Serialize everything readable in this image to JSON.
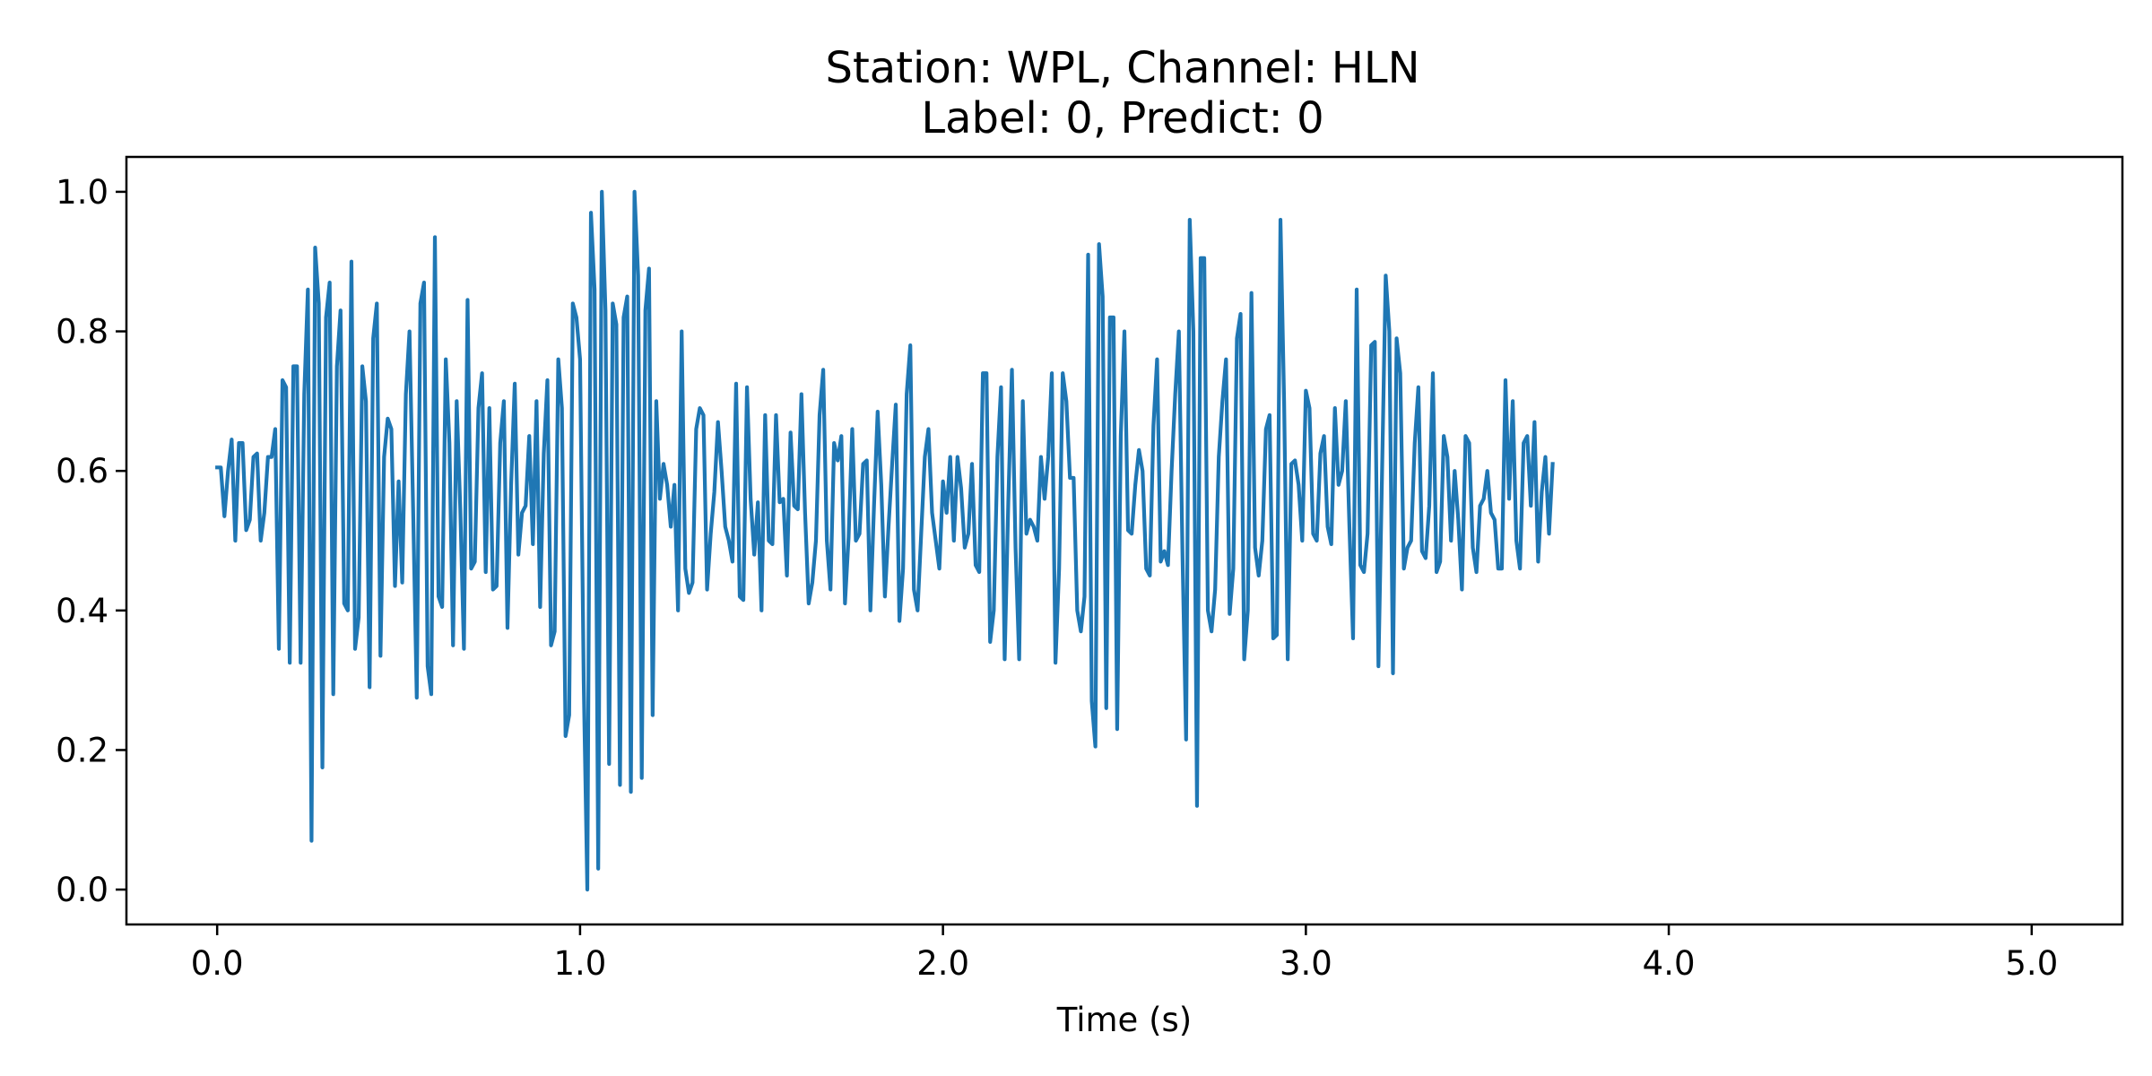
{
  "chart_data": {
    "type": "line",
    "title_lines": [
      "Station: WPL, Channel: HLN",
      "Label: 0, Predict: 0"
    ],
    "xlabel": "Time (s)",
    "ylabel": "",
    "xlim": [
      -0.25,
      5.25
    ],
    "ylim": [
      -0.05,
      1.05
    ],
    "x_ticks": [
      0.0,
      1.0,
      2.0,
      3.0,
      4.0,
      5.0
    ],
    "x_tick_labels": [
      "0.0",
      "1.0",
      "2.0",
      "3.0",
      "4.0",
      "5.0"
    ],
    "y_ticks": [
      0.0,
      0.2,
      0.4,
      0.6,
      0.8,
      1.0
    ],
    "y_tick_labels": [
      "0.0",
      "0.2",
      "0.4",
      "0.6",
      "0.8",
      "1.0"
    ],
    "grid": false,
    "legend": "none",
    "line_color": "#1f77b4",
    "series": [
      {
        "sample_interval": 0.01,
        "start_time": 0.0,
        "values": [
          0.605,
          0.605,
          0.535,
          0.6,
          0.645,
          0.5,
          0.64,
          0.64,
          0.515,
          0.53,
          0.62,
          0.625,
          0.5,
          0.54,
          0.62,
          0.62,
          0.66,
          0.345,
          0.73,
          0.72,
          0.325,
          0.75,
          0.75,
          0.325,
          0.71,
          0.86,
          0.07,
          0.92,
          0.84,
          0.175,
          0.82,
          0.87,
          0.28,
          0.75,
          0.83,
          0.41,
          0.4,
          0.9,
          0.345,
          0.39,
          0.75,
          0.7,
          0.29,
          0.79,
          0.84,
          0.335,
          0.62,
          0.675,
          0.66,
          0.435,
          0.585,
          0.44,
          0.71,
          0.8,
          0.545,
          0.275,
          0.84,
          0.87,
          0.32,
          0.28,
          0.935,
          0.42,
          0.405,
          0.76,
          0.64,
          0.35,
          0.7,
          0.545,
          0.345,
          0.845,
          0.46,
          0.47,
          0.69,
          0.74,
          0.455,
          0.69,
          0.43,
          0.435,
          0.64,
          0.7,
          0.375,
          0.58,
          0.725,
          0.48,
          0.54,
          0.55,
          0.65,
          0.495,
          0.7,
          0.405,
          0.625,
          0.73,
          0.35,
          0.37,
          0.76,
          0.69,
          0.22,
          0.25,
          0.84,
          0.82,
          0.76,
          0.3,
          0.0,
          0.97,
          0.86,
          0.03,
          1.0,
          0.83,
          0.18,
          0.84,
          0.81,
          0.15,
          0.82,
          0.85,
          0.14,
          1.0,
          0.88,
          0.16,
          0.83,
          0.89,
          0.25,
          0.7,
          0.56,
          0.61,
          0.58,
          0.52,
          0.58,
          0.4,
          0.8,
          0.46,
          0.425,
          0.44,
          0.66,
          0.69,
          0.68,
          0.43,
          0.51,
          0.57,
          0.67,
          0.6,
          0.52,
          0.5,
          0.47,
          0.725,
          0.42,
          0.415,
          0.72,
          0.56,
          0.48,
          0.555,
          0.4,
          0.68,
          0.5,
          0.495,
          0.68,
          0.555,
          0.56,
          0.45,
          0.655,
          0.55,
          0.545,
          0.71,
          0.54,
          0.41,
          0.44,
          0.5,
          0.68,
          0.745,
          0.5,
          0.43,
          0.64,
          0.615,
          0.65,
          0.41,
          0.505,
          0.66,
          0.5,
          0.51,
          0.61,
          0.615,
          0.4,
          0.55,
          0.685,
          0.58,
          0.42,
          0.52,
          0.61,
          0.695,
          0.385,
          0.46,
          0.71,
          0.78,
          0.43,
          0.4,
          0.51,
          0.62,
          0.66,
          0.54,
          0.5,
          0.46,
          0.585,
          0.54,
          0.62,
          0.5,
          0.62,
          0.575,
          0.49,
          0.51,
          0.61,
          0.465,
          0.455,
          0.74,
          0.74,
          0.355,
          0.4,
          0.62,
          0.72,
          0.33,
          0.555,
          0.745,
          0.49,
          0.33,
          0.7,
          0.51,
          0.53,
          0.52,
          0.5,
          0.62,
          0.56,
          0.62,
          0.74,
          0.325,
          0.46,
          0.74,
          0.7,
          0.59,
          0.59,
          0.4,
          0.37,
          0.42,
          0.91,
          0.27,
          0.205,
          0.925,
          0.85,
          0.26,
          0.82,
          0.82,
          0.23,
          0.65,
          0.8,
          0.515,
          0.51,
          0.58,
          0.63,
          0.6,
          0.46,
          0.45,
          0.665,
          0.76,
          0.47,
          0.485,
          0.465,
          0.6,
          0.71,
          0.8,
          0.48,
          0.215,
          0.96,
          0.8,
          0.12,
          0.905,
          0.905,
          0.4,
          0.37,
          0.43,
          0.62,
          0.7,
          0.76,
          0.395,
          0.46,
          0.79,
          0.825,
          0.33,
          0.4,
          0.855,
          0.49,
          0.45,
          0.5,
          0.66,
          0.68,
          0.36,
          0.365,
          0.96,
          0.7,
          0.33,
          0.61,
          0.615,
          0.58,
          0.5,
          0.715,
          0.69,
          0.51,
          0.5,
          0.625,
          0.65,
          0.52,
          0.495,
          0.69,
          0.58,
          0.6,
          0.7,
          0.52,
          0.36,
          0.86,
          0.465,
          0.455,
          0.51,
          0.78,
          0.785,
          0.32,
          0.6,
          0.88,
          0.8,
          0.31,
          0.79,
          0.74,
          0.46,
          0.49,
          0.5,
          0.64,
          0.72,
          0.485,
          0.475,
          0.55,
          0.74,
          0.455,
          0.47,
          0.65,
          0.62,
          0.5,
          0.6,
          0.53,
          0.43,
          0.65,
          0.64,
          0.49,
          0.455,
          0.55,
          0.56,
          0.6,
          0.54,
          0.53,
          0.46,
          0.46,
          0.73,
          0.56,
          0.7,
          0.5,
          0.46,
          0.64,
          0.65,
          0.55,
          0.67,
          0.47,
          0.57,
          0.62,
          0.51,
          0.61
        ]
      }
    ]
  }
}
